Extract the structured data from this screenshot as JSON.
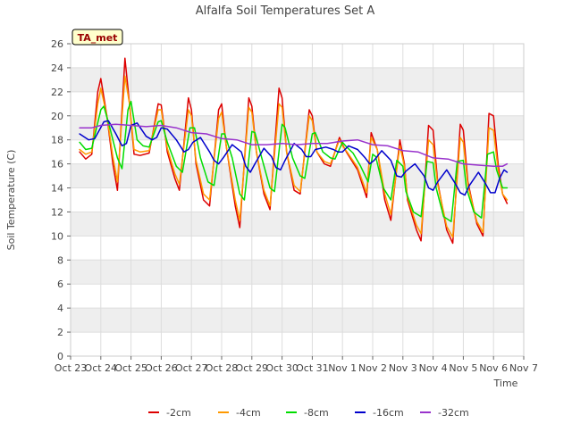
{
  "chart_data": {
    "type": "line",
    "title": "Alfalfa Soil Temperatures Set A",
    "xlabel": "Time",
    "ylabel": "Soil Temperature (C)",
    "site_label": "TA_met",
    "ylim": [
      0,
      26
    ],
    "xlim": [
      0,
      15
    ],
    "y_ticks": [
      0,
      2,
      4,
      6,
      8,
      10,
      12,
      14,
      16,
      18,
      20,
      22,
      24,
      26
    ],
    "x_ticks": [
      {
        "x": 0,
        "label": "Oct 23"
      },
      {
        "x": 1,
        "label": "Oct 24"
      },
      {
        "x": 2,
        "label": "Oct 25"
      },
      {
        "x": 3,
        "label": "Oct 26"
      },
      {
        "x": 4,
        "label": "Oct 27"
      },
      {
        "x": 5,
        "label": "Oct 28"
      },
      {
        "x": 6,
        "label": "Oct 29"
      },
      {
        "x": 7,
        "label": "Oct 30"
      },
      {
        "x": 8,
        "label": "Oct 31"
      },
      {
        "x": 9,
        "label": "Nov 1"
      },
      {
        "x": 10,
        "label": "Nov 2"
      },
      {
        "x": 11,
        "label": "Nov 3"
      },
      {
        "x": 12,
        "label": "Nov 4"
      },
      {
        "x": 13,
        "label": "Nov 5"
      },
      {
        "x": 14,
        "label": "Nov 6"
      },
      {
        "x": 15,
        "label": "Nov 7"
      }
    ],
    "grid": true,
    "legend_position": "bottom",
    "series": [
      {
        "name": "-2cm",
        "color": "#dd0000",
        "x": [
          0.3,
          0.5,
          0.7,
          0.9,
          1.0,
          1.2,
          1.4,
          1.55,
          1.8,
          1.95,
          2.1,
          2.3,
          2.6,
          2.9,
          3.0,
          3.2,
          3.45,
          3.6,
          3.9,
          4.0,
          4.15,
          4.4,
          4.6,
          4.9,
          5.0,
          5.15,
          5.45,
          5.6,
          5.9,
          6.0,
          6.15,
          6.4,
          6.6,
          6.9,
          7.0,
          7.15,
          7.4,
          7.6,
          7.9,
          8.0,
          8.15,
          8.4,
          8.6,
          8.9,
          9.0,
          9.15,
          9.5,
          9.8,
          9.95,
          10.15,
          10.4,
          10.6,
          10.9,
          11.05,
          11.15,
          11.45,
          11.6,
          11.85,
          12.0,
          12.15,
          12.45,
          12.65,
          12.9,
          13.0,
          13.15,
          13.45,
          13.65,
          13.85,
          14.0,
          14.15,
          14.3,
          14.45
        ],
        "y": [
          17.0,
          16.4,
          16.8,
          22.0,
          23.1,
          20.0,
          16.0,
          13.8,
          24.8,
          21.0,
          16.8,
          16.7,
          16.9,
          21.0,
          20.9,
          17.0,
          14.8,
          13.8,
          21.5,
          20.5,
          16.0,
          13.0,
          12.5,
          20.5,
          21.0,
          17.5,
          12.5,
          10.7,
          21.5,
          20.8,
          17.0,
          13.5,
          12.2,
          22.3,
          21.5,
          17.0,
          13.8,
          13.5,
          20.5,
          20.0,
          17.0,
          16.0,
          15.8,
          18.2,
          17.6,
          16.9,
          15.5,
          13.2,
          18.6,
          17.2,
          13.0,
          11.3,
          18.0,
          16.0,
          13.0,
          10.5,
          9.6,
          19.2,
          18.8,
          14.5,
          10.5,
          9.4,
          19.3,
          18.8,
          14.5,
          11.0,
          10.0,
          20.2,
          20.0,
          16.0,
          13.5,
          12.7
        ]
      },
      {
        "name": "-4cm",
        "color": "#ff9900",
        "x": [
          0.3,
          0.5,
          0.7,
          0.9,
          1.0,
          1.2,
          1.4,
          1.55,
          1.8,
          1.95,
          2.1,
          2.3,
          2.6,
          2.9,
          3.0,
          3.2,
          3.45,
          3.6,
          3.9,
          4.0,
          4.15,
          4.4,
          4.6,
          4.9,
          5.0,
          5.15,
          5.45,
          5.6,
          5.9,
          6.0,
          6.15,
          6.4,
          6.6,
          6.9,
          7.0,
          7.15,
          7.4,
          7.6,
          7.9,
          8.0,
          8.15,
          8.4,
          8.6,
          8.9,
          9.0,
          9.15,
          9.5,
          9.8,
          9.95,
          10.15,
          10.4,
          10.6,
          10.9,
          11.05,
          11.15,
          11.45,
          11.6,
          11.85,
          12.0,
          12.15,
          12.45,
          12.65,
          12.9,
          13.0,
          13.15,
          13.45,
          13.65,
          13.85,
          14.0,
          14.15,
          14.3,
          14.45
        ],
        "y": [
          17.2,
          16.8,
          17.0,
          21.0,
          22.3,
          20.0,
          16.6,
          14.5,
          23.3,
          21.0,
          17.2,
          17.0,
          17.1,
          20.5,
          20.5,
          17.3,
          15.2,
          14.3,
          20.5,
          20.0,
          16.3,
          13.5,
          13.0,
          19.8,
          20.3,
          17.5,
          13.0,
          11.3,
          20.7,
          20.3,
          17.0,
          13.8,
          12.5,
          21.0,
          20.7,
          17.0,
          14.2,
          13.7,
          20.0,
          19.6,
          17.0,
          16.2,
          16.0,
          18.0,
          17.5,
          17.0,
          15.7,
          13.6,
          18.2,
          17.2,
          13.5,
          11.8,
          17.5,
          15.8,
          13.2,
          10.9,
          10.2,
          18.0,
          17.6,
          14.3,
          10.8,
          9.9,
          18.2,
          17.8,
          14.2,
          11.2,
          10.3,
          19.0,
          18.8,
          15.5,
          13.5,
          13.0
        ]
      },
      {
        "name": "-8cm",
        "color": "#00dd00",
        "x": [
          0.3,
          0.5,
          0.7,
          1.0,
          1.1,
          1.3,
          1.55,
          1.7,
          1.9,
          2.0,
          2.2,
          2.4,
          2.6,
          2.9,
          3.0,
          3.2,
          3.5,
          3.7,
          3.95,
          4.1,
          4.3,
          4.55,
          4.75,
          5.0,
          5.1,
          5.35,
          5.6,
          5.75,
          6.0,
          6.1,
          6.35,
          6.6,
          6.75,
          7.0,
          7.1,
          7.35,
          7.6,
          7.75,
          8.0,
          8.1,
          8.35,
          8.6,
          8.75,
          9.0,
          9.1,
          9.35,
          9.6,
          9.85,
          10.0,
          10.1,
          10.35,
          10.6,
          10.8,
          11.0,
          11.1,
          11.35,
          11.6,
          11.8,
          12.0,
          12.1,
          12.35,
          12.6,
          12.8,
          13.0,
          13.1,
          13.35,
          13.6,
          13.8,
          14.0,
          14.1,
          14.3,
          14.45
        ],
        "y": [
          17.8,
          17.2,
          17.3,
          20.5,
          20.8,
          19.0,
          16.5,
          15.6,
          20.5,
          21.2,
          18.0,
          17.5,
          17.4,
          19.5,
          19.6,
          17.8,
          15.8,
          15.3,
          19.0,
          19.0,
          16.5,
          14.5,
          14.2,
          18.5,
          18.5,
          16.5,
          13.5,
          13.0,
          18.7,
          18.6,
          16.3,
          14.0,
          13.7,
          19.3,
          19.0,
          16.5,
          15.0,
          14.8,
          18.5,
          18.6,
          17.0,
          16.5,
          16.4,
          17.8,
          17.5,
          16.9,
          15.8,
          14.5,
          16.8,
          16.6,
          14.0,
          13.0,
          16.3,
          15.8,
          13.7,
          12.0,
          11.6,
          16.2,
          16.1,
          14.0,
          11.6,
          11.2,
          16.2,
          16.3,
          14.0,
          12.0,
          11.5,
          16.8,
          17.0,
          15.5,
          14.0,
          14.0
        ]
      },
      {
        "name": "-16cm",
        "color": "#0000cc",
        "x": [
          0.3,
          0.6,
          0.8,
          1.1,
          1.25,
          1.5,
          1.7,
          1.85,
          2.0,
          2.2,
          2.5,
          2.7,
          2.85,
          3.0,
          3.2,
          3.5,
          3.75,
          3.9,
          4.05,
          4.3,
          4.6,
          4.75,
          4.9,
          5.05,
          5.35,
          5.65,
          5.8,
          5.95,
          6.1,
          6.4,
          6.65,
          6.8,
          6.95,
          7.1,
          7.4,
          7.65,
          7.8,
          7.95,
          8.1,
          8.45,
          8.7,
          8.85,
          9.0,
          9.2,
          9.5,
          9.75,
          9.9,
          10.05,
          10.3,
          10.6,
          10.8,
          10.95,
          11.1,
          11.4,
          11.7,
          11.85,
          12.0,
          12.15,
          12.45,
          12.7,
          12.9,
          13.05,
          13.2,
          13.5,
          13.7,
          13.9,
          14.05,
          14.2,
          14.35,
          14.45
        ],
        "y": [
          18.5,
          18.0,
          18.1,
          19.5,
          19.6,
          18.5,
          17.5,
          17.7,
          19.2,
          19.4,
          18.3,
          18.0,
          18.2,
          19.0,
          18.9,
          18.0,
          17.0,
          17.2,
          17.8,
          18.2,
          17.0,
          16.3,
          16.0,
          16.5,
          17.6,
          17.0,
          15.8,
          15.3,
          16.0,
          17.3,
          16.6,
          15.7,
          15.5,
          16.3,
          17.7,
          17.2,
          16.6,
          16.6,
          17.2,
          17.4,
          17.2,
          17.0,
          17.0,
          17.5,
          17.2,
          16.5,
          16.0,
          16.3,
          17.1,
          16.3,
          15.0,
          14.9,
          15.4,
          16.0,
          15.0,
          14.0,
          13.8,
          14.5,
          15.5,
          14.5,
          13.6,
          13.4,
          14.2,
          15.3,
          14.5,
          13.6,
          13.6,
          14.8,
          15.5,
          15.3
        ]
      },
      {
        "name": "-32cm",
        "color": "#9933cc",
        "x": [
          0.3,
          0.7,
          1.0,
          1.5,
          2.0,
          2.5,
          3.0,
          3.5,
          4.0,
          4.5,
          5.0,
          5.5,
          6.0,
          6.5,
          7.0,
          7.5,
          8.0,
          8.5,
          9.0,
          9.5,
          10.0,
          10.5,
          11.0,
          11.5,
          12.0,
          12.5,
          13.0,
          13.5,
          14.0,
          14.3,
          14.45
        ],
        "y": [
          19.0,
          19.0,
          19.2,
          19.3,
          19.2,
          19.1,
          19.2,
          19.0,
          18.6,
          18.5,
          18.1,
          18.0,
          17.6,
          17.6,
          17.7,
          17.6,
          17.7,
          17.7,
          17.9,
          18.0,
          17.6,
          17.5,
          17.1,
          17.0,
          16.5,
          16.4,
          16.0,
          15.9,
          15.8,
          15.8,
          16.0
        ]
      }
    ]
  }
}
